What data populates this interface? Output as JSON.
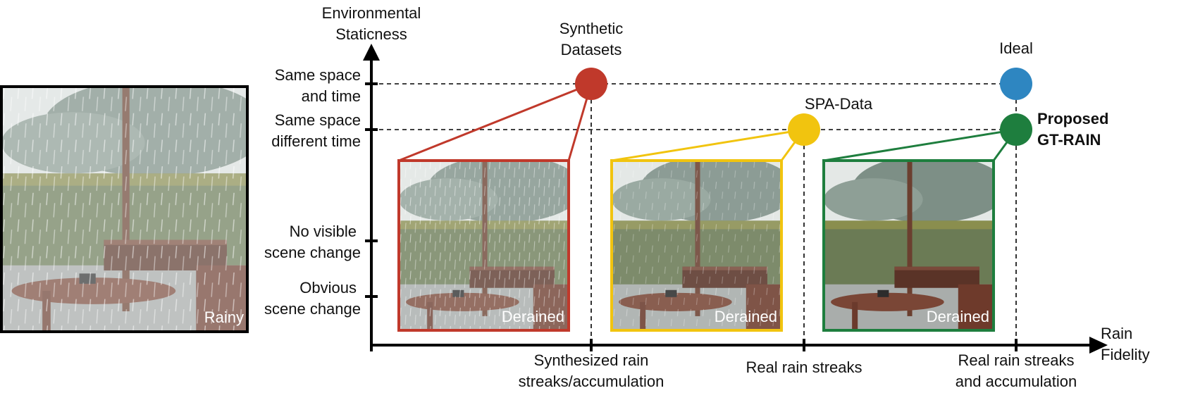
{
  "y_axis": {
    "title_line1": "Environmental",
    "title_line2": "Staticness",
    "levels": [
      {
        "line1": "Same space",
        "line2": "and time"
      },
      {
        "line1": "Same space",
        "line2": "different time"
      },
      {
        "line1": "No visible",
        "line2": "scene change"
      },
      {
        "line1": "Obvious",
        "line2": "scene change"
      }
    ]
  },
  "x_axis": {
    "title_line1": "Rain",
    "title_line2": "Fidelity",
    "levels": [
      {
        "line1": "Synthesized rain",
        "line2": "streaks/accumulation"
      },
      {
        "line1": "Real rain streaks",
        "line2": ""
      },
      {
        "line1": "Real rain streaks",
        "line2": "and accumulation"
      }
    ]
  },
  "points": [
    {
      "label_line1": "Synthetic",
      "label_line2": "Datasets",
      "color": "#c0392b"
    },
    {
      "label_line1": "SPA-Data",
      "label_line2": "",
      "color": "#f1c40f"
    },
    {
      "label_line1": "Ideal",
      "label_line2": "",
      "color": "#2e86c1"
    },
    {
      "label_line1": "Proposed",
      "label_line2": "GT-RAIN",
      "color": "#1e7e3e"
    }
  ],
  "rainy_image": {
    "label": "Rainy"
  },
  "derained_images": [
    {
      "label": "Derained",
      "color": "#c0392b"
    },
    {
      "label": "Derained",
      "color": "#f1c40f"
    },
    {
      "label": "Derained",
      "color": "#1e7e3e"
    }
  ]
}
